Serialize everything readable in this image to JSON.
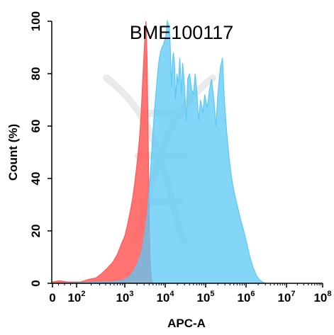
{
  "chart_data": {
    "type": "area",
    "title": "BME100117",
    "xlabel": "APC-A",
    "ylabel": "Count  (%)",
    "x_scale": "biexponential",
    "xlim": [
      0,
      100000000
    ],
    "ylim": [
      0,
      100
    ],
    "y_ticks": [
      "0",
      "20",
      "40",
      "60",
      "80",
      "100"
    ],
    "x_ticks": [
      {
        "value": 0,
        "base": "0",
        "exp": ""
      },
      {
        "value": 100,
        "base": "10",
        "exp": "2"
      },
      {
        "value": 1000,
        "base": "10",
        "exp": "3"
      },
      {
        "value": 10000,
        "base": "10",
        "exp": "4"
      },
      {
        "value": 100000,
        "base": "10",
        "exp": "5"
      },
      {
        "value": 1000000,
        "base": "10",
        "exp": "6"
      },
      {
        "value": 10000000,
        "base": "10",
        "exp": "7"
      },
      {
        "value": 100000000,
        "base": "10",
        "exp": "8"
      }
    ],
    "grid": false,
    "series": [
      {
        "color": "#ff5a5a",
        "points": [
          [
            0,
            0.5
          ],
          [
            30,
            1
          ],
          [
            60,
            0.5
          ],
          [
            120,
            0.5
          ],
          [
            180,
            1.5
          ],
          [
            250,
            2
          ],
          [
            320,
            3.5
          ],
          [
            420,
            5.5
          ],
          [
            560,
            8
          ],
          [
            700,
            11
          ],
          [
            850,
            15
          ],
          [
            1000,
            18
          ],
          [
            1150,
            22
          ],
          [
            1350,
            27
          ],
          [
            1550,
            32
          ],
          [
            1750,
            38
          ],
          [
            1950,
            44
          ],
          [
            2150,
            50
          ],
          [
            2350,
            57
          ],
          [
            2550,
            66
          ],
          [
            2750,
            76
          ],
          [
            2950,
            86
          ],
          [
            3150,
            94
          ],
          [
            3350,
            100
          ],
          [
            3550,
            86
          ],
          [
            3750,
            60
          ],
          [
            3900,
            40
          ],
          [
            4050,
            22
          ],
          [
            4200,
            10
          ],
          [
            4400,
            4
          ],
          [
            4600,
            1.5
          ],
          [
            4900,
            0
          ]
        ]
      },
      {
        "color": "#5bc8f5",
        "points": [
          [
            0,
            0
          ],
          [
            500,
            0.5
          ],
          [
            900,
            1
          ],
          [
            1300,
            2.5
          ],
          [
            1650,
            4.5
          ],
          [
            2000,
            7
          ],
          [
            2400,
            10
          ],
          [
            2800,
            14
          ],
          [
            3200,
            20
          ],
          [
            3600,
            26
          ],
          [
            4000,
            35
          ],
          [
            4400,
            45
          ],
          [
            4800,
            54
          ],
          [
            5200,
            62
          ],
          [
            5700,
            70
          ],
          [
            6300,
            78
          ],
          [
            7000,
            85
          ],
          [
            7600,
            88
          ],
          [
            8300,
            90
          ],
          [
            9000,
            91
          ],
          [
            9800,
            93
          ],
          [
            10500,
            95
          ],
          [
            11200,
            100
          ],
          [
            12000,
            99
          ],
          [
            12800,
            97
          ],
          [
            13500,
            88
          ],
          [
            14200,
            75
          ],
          [
            15000,
            84
          ],
          [
            16000,
            88
          ],
          [
            17000,
            84
          ],
          [
            18000,
            70
          ],
          [
            19500,
            80
          ],
          [
            21000,
            76
          ],
          [
            23000,
            86
          ],
          [
            25000,
            72
          ],
          [
            27000,
            84
          ],
          [
            30000,
            75
          ],
          [
            33000,
            62
          ],
          [
            36000,
            78
          ],
          [
            40000,
            80
          ],
          [
            45000,
            74
          ],
          [
            50000,
            72
          ],
          [
            55000,
            80
          ],
          [
            60000,
            74
          ],
          [
            67000,
            62
          ],
          [
            75000,
            70
          ],
          [
            85000,
            65
          ],
          [
            95000,
            72
          ],
          [
            110000,
            67
          ],
          [
            125000,
            74
          ],
          [
            140000,
            78
          ],
          [
            160000,
            70
          ],
          [
            180000,
            60
          ],
          [
            200000,
            72
          ],
          [
            230000,
            82
          ],
          [
            260000,
            86
          ],
          [
            290000,
            70
          ],
          [
            330000,
            58
          ],
          [
            380000,
            48
          ],
          [
            440000,
            40
          ],
          [
            520000,
            34
          ],
          [
            620000,
            29
          ],
          [
            740000,
            24
          ],
          [
            880000,
            20
          ],
          [
            1050000,
            15
          ],
          [
            1250000,
            10
          ],
          [
            1500000,
            6
          ],
          [
            1800000,
            3
          ],
          [
            2100000,
            1.5
          ],
          [
            2500000,
            0.5
          ],
          [
            3000000,
            0
          ]
        ]
      }
    ]
  }
}
